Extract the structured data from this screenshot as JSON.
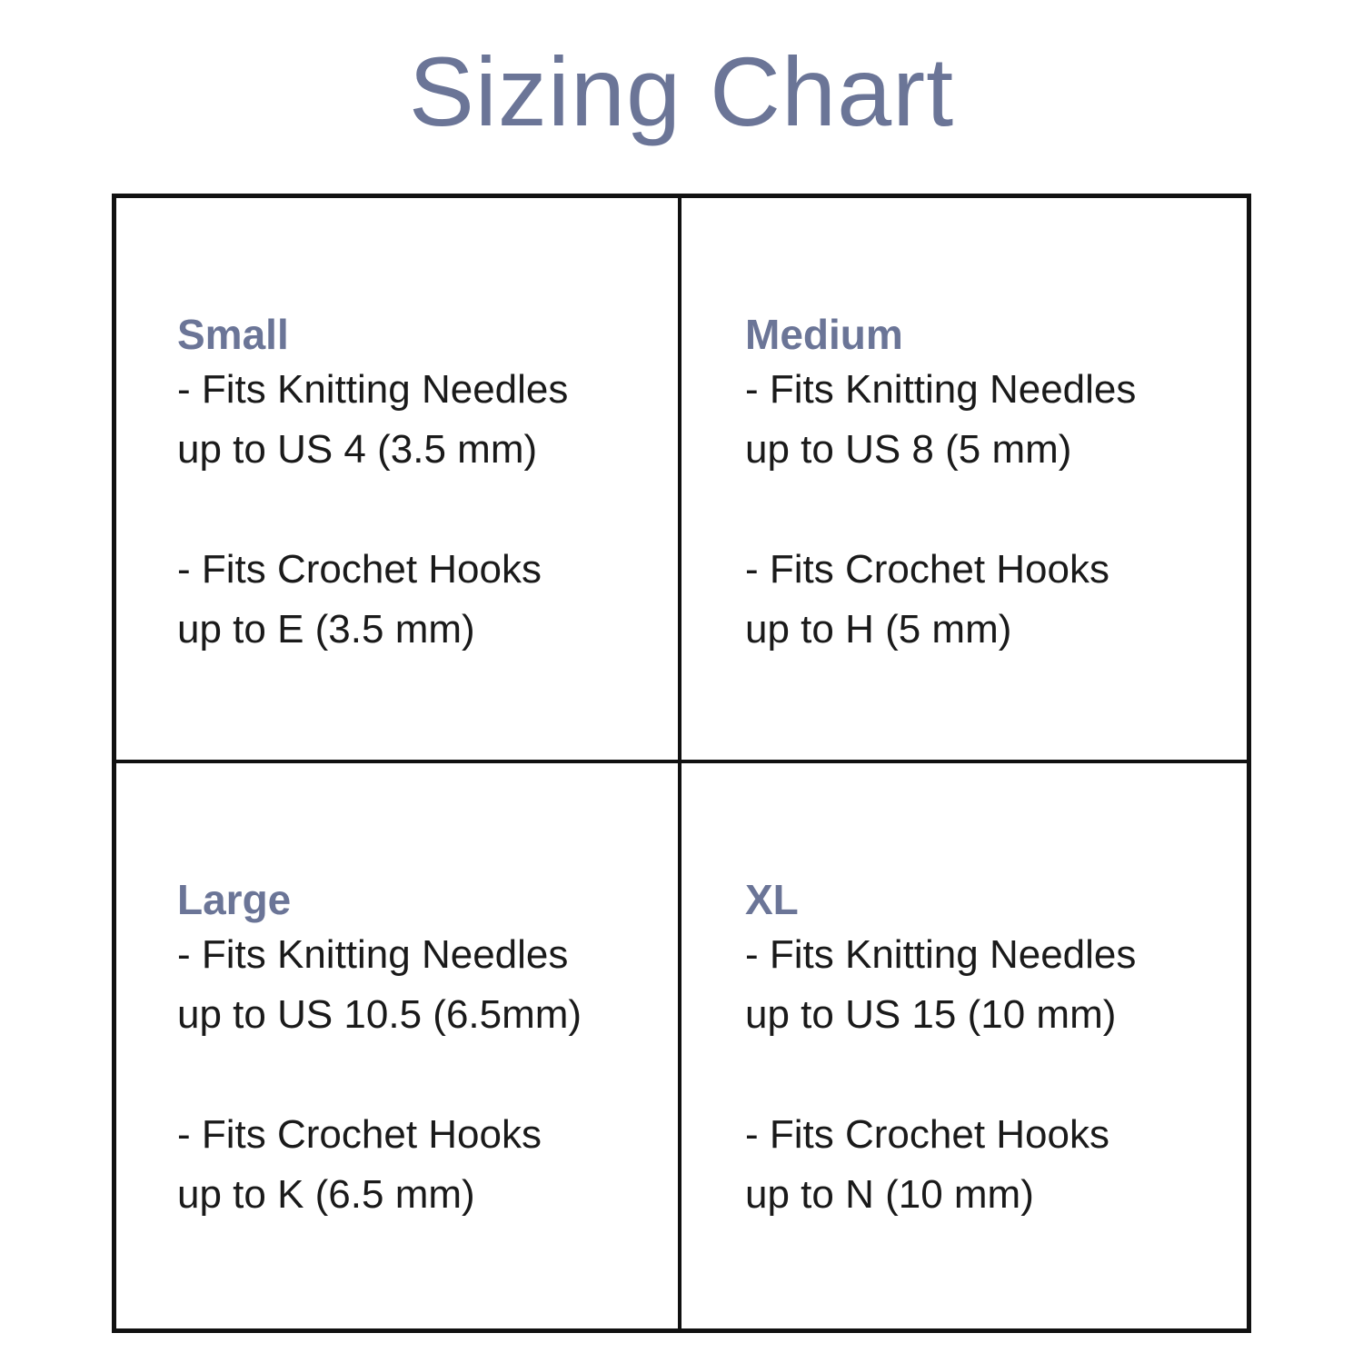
{
  "title": "Sizing Chart",
  "colors": {
    "accent": "#6b7597",
    "border": "#111111",
    "text": "#1a1a1a"
  },
  "sizes": [
    {
      "name": "Small",
      "needles": [
        "- Fits Knitting Needles",
        "up to US 4 (3.5 mm)"
      ],
      "hooks": [
        "- Fits Crochet Hooks",
        "up to E (3.5 mm)"
      ]
    },
    {
      "name": "Medium",
      "needles": [
        "- Fits Knitting Needles",
        "up to US 8 (5 mm)"
      ],
      "hooks": [
        "- Fits Crochet Hooks",
        "up to H (5 mm)"
      ]
    },
    {
      "name": "Large",
      "needles": [
        "- Fits Knitting Needles",
        "up to US 10.5 (6.5mm)"
      ],
      "hooks": [
        "- Fits Crochet Hooks",
        "up to K (6.5 mm)"
      ]
    },
    {
      "name": "XL",
      "needles": [
        "- Fits Knitting Needles",
        "up to US 15 (10 mm)"
      ],
      "hooks": [
        "- Fits Crochet Hooks",
        "up to N (10 mm)"
      ]
    }
  ]
}
